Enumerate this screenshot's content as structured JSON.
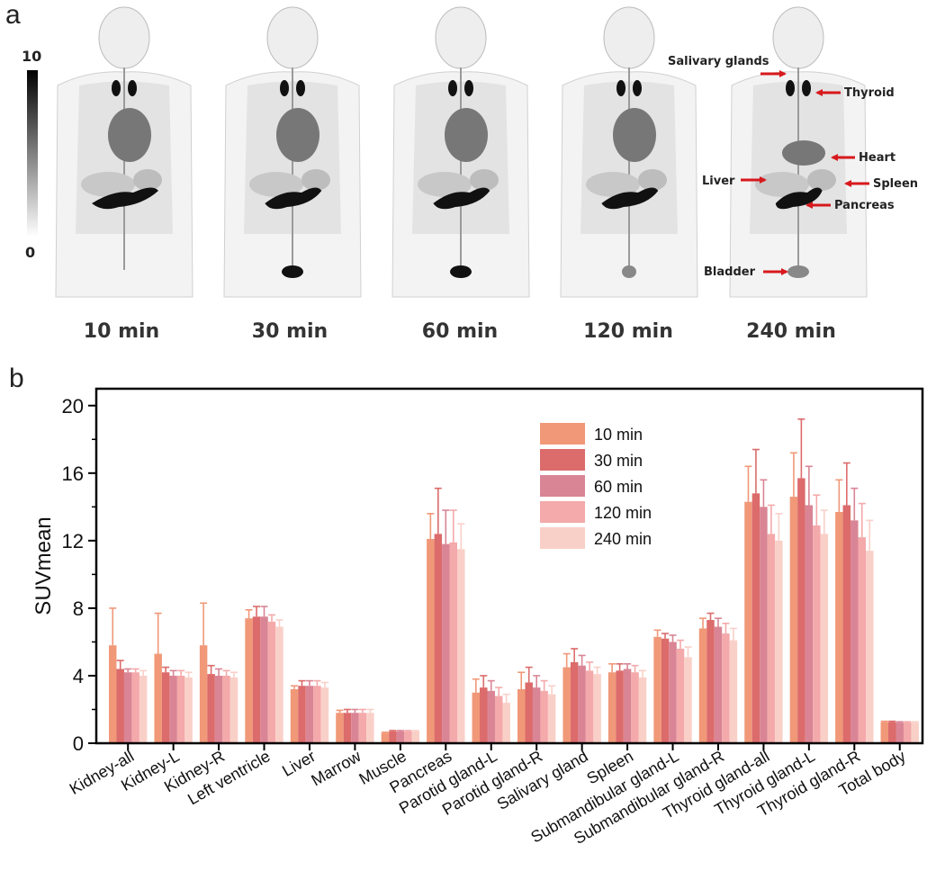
{
  "panel_a": {
    "label": "a",
    "colorbar": {
      "max_label": "10",
      "min_label": "0"
    },
    "time_labels": [
      "10 min",
      "30 min",
      "60 min",
      "120 min",
      "240 min"
    ],
    "organ_labels": {
      "salivary": "Salivary glands",
      "thyroid": "Thyroid",
      "heart": "Heart",
      "liver": "Liver",
      "spleen": "Spleen",
      "pancreas": "Pancreas",
      "bladder": "Bladder"
    },
    "arrow_color": "#d7191c"
  },
  "panel_b": {
    "label": "b"
  },
  "chart_data": {
    "type": "bar",
    "ylabel": "SUVmean",
    "xlabel": "",
    "ylim": [
      0,
      21
    ],
    "yticks": [
      0,
      4,
      8,
      12,
      16,
      20
    ],
    "legend_position": "top-right",
    "categories": [
      "Kidney-all",
      "Kidney-L",
      "Kidney-R",
      "Left ventricle",
      "Liver",
      "Marrow",
      "Muscle",
      "Pancreas",
      "Parotid gland-L",
      "Parotid gland-R",
      "Salivary gland",
      "Spleen",
      "Submandibular gland-L",
      "Submandibular gland-R",
      "Thyroid gland-all",
      "Thyroid gland-L",
      "Thyroid gland-R",
      "Total body"
    ],
    "series": [
      {
        "name": "10 min",
        "color": "#f09878",
        "values": [
          5.8,
          5.3,
          5.8,
          7.4,
          3.2,
          1.8,
          0.6,
          12.1,
          3.0,
          3.2,
          4.5,
          4.2,
          6.3,
          6.8,
          14.3,
          14.6,
          13.7,
          1.25
        ],
        "errors": [
          2.2,
          2.4,
          2.5,
          0.5,
          0.2,
          0.15,
          0.05,
          1.5,
          0.8,
          1.0,
          0.8,
          0.5,
          0.4,
          0.6,
          2.1,
          2.6,
          1.9,
          0.05
        ]
      },
      {
        "name": "30 min",
        "color": "#dc6b6b",
        "values": [
          4.4,
          4.2,
          4.1,
          7.5,
          3.4,
          1.8,
          0.7,
          12.4,
          3.3,
          3.6,
          4.8,
          4.3,
          6.2,
          7.3,
          14.8,
          15.7,
          14.1,
          1.25
        ],
        "errors": [
          0.5,
          0.3,
          0.5,
          0.6,
          0.3,
          0.2,
          0.05,
          2.7,
          0.7,
          0.9,
          0.8,
          0.4,
          0.3,
          0.4,
          2.6,
          3.5,
          2.5,
          0.05
        ]
      },
      {
        "name": "60 min",
        "color": "#d98595",
        "values": [
          4.2,
          4.0,
          4.0,
          7.5,
          3.4,
          1.8,
          0.7,
          11.8,
          3.1,
          3.3,
          4.6,
          4.4,
          6.0,
          6.9,
          14.0,
          14.1,
          13.2,
          1.22
        ],
        "errors": [
          0.2,
          0.3,
          0.4,
          0.6,
          0.3,
          0.2,
          0.05,
          2.0,
          0.6,
          0.7,
          0.6,
          0.3,
          0.4,
          0.5,
          1.6,
          2.3,
          1.9,
          0.05
        ]
      },
      {
        "name": "120 min",
        "color": "#f4a9aa",
        "values": [
          4.2,
          4.0,
          4.0,
          7.2,
          3.4,
          1.8,
          0.7,
          11.9,
          2.8,
          3.1,
          4.3,
          4.2,
          5.6,
          6.5,
          12.4,
          12.9,
          12.2,
          1.22
        ],
        "errors": [
          0.2,
          0.3,
          0.3,
          0.4,
          0.3,
          0.2,
          0.05,
          1.9,
          0.5,
          0.6,
          0.5,
          0.4,
          0.5,
          0.6,
          1.7,
          1.8,
          2.0,
          0.05
        ]
      },
      {
        "name": "240 min",
        "color": "#f9d0c8",
        "values": [
          4.0,
          3.9,
          3.9,
          6.9,
          3.3,
          1.8,
          0.7,
          11.5,
          2.4,
          2.9,
          4.1,
          3.9,
          5.1,
          6.1,
          12.0,
          12.4,
          11.4,
          1.22
        ],
        "errors": [
          0.3,
          0.3,
          0.3,
          0.4,
          0.3,
          0.2,
          0.05,
          1.5,
          0.5,
          0.5,
          0.4,
          0.4,
          0.6,
          0.7,
          1.6,
          1.4,
          1.8,
          0.05
        ]
      }
    ]
  }
}
